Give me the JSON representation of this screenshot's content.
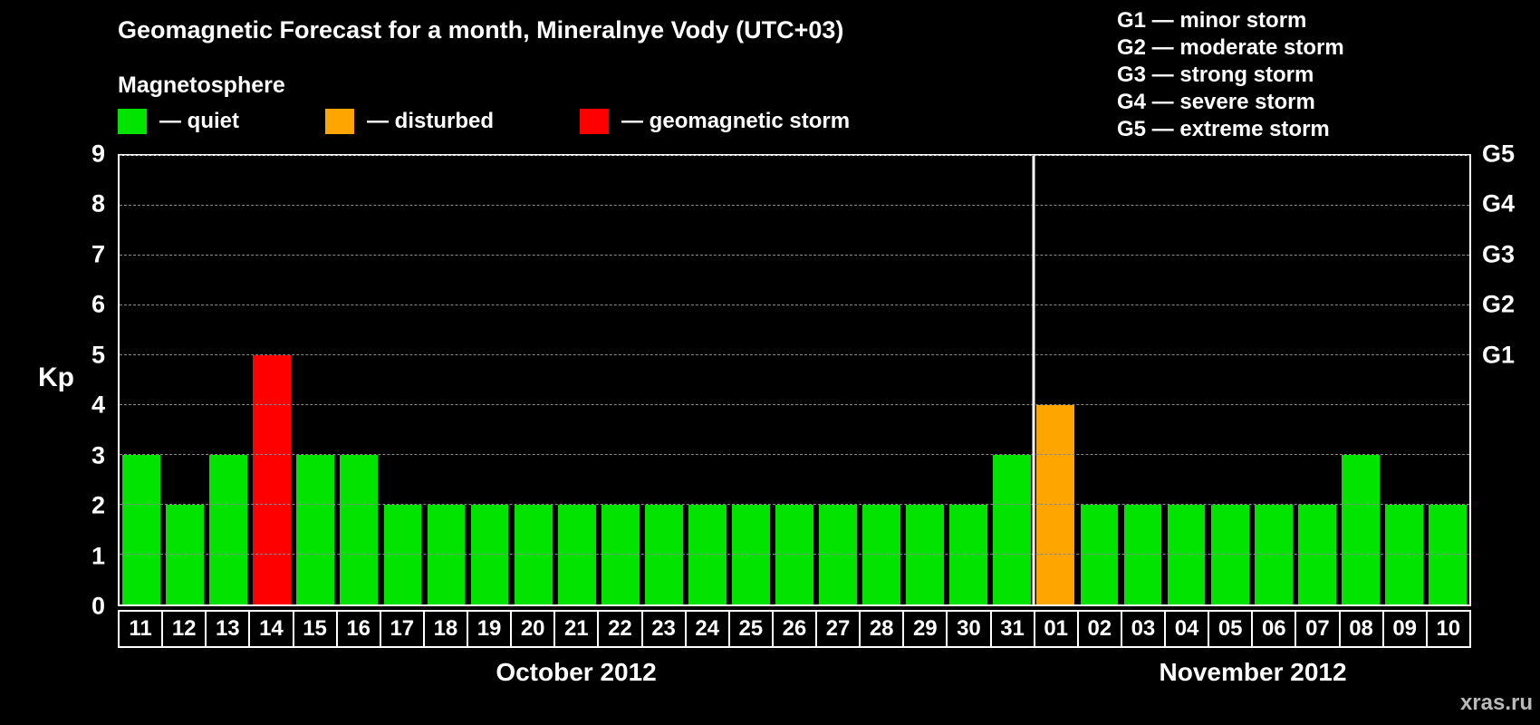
{
  "title": "Geomagnetic Forecast for a month, Mineralnye Vody (UTC+03)",
  "legend": {
    "heading": "Magnetosphere",
    "items": [
      {
        "status": "quiet",
        "color": "#00e400",
        "label": "— quiet"
      },
      {
        "status": "disturbed",
        "color": "#ffa500",
        "label": "— disturbed"
      },
      {
        "status": "storm",
        "color": "#ff0000",
        "label": "— geomagnetic storm"
      }
    ]
  },
  "g_scale_legend": [
    "G1 — minor storm",
    "G2 — moderate storm",
    "G3 — strong storm",
    "G4 — severe storm",
    "G5 — extreme storm"
  ],
  "watermark": "xras.ru",
  "chart_data": {
    "type": "bar",
    "title": "Geomagnetic Forecast for a month, Mineralnye Vody (UTC+03)",
    "xlabel": "",
    "ylabel": "Kp",
    "ylim": [
      0,
      9
    ],
    "yticks": [
      0,
      1,
      2,
      3,
      4,
      5,
      6,
      7,
      8,
      9
    ],
    "grid": "horizontal-dashed",
    "right_axis": [
      {
        "label": "G1",
        "value": 5
      },
      {
        "label": "G2",
        "value": 6
      },
      {
        "label": "G3",
        "value": 7
      },
      {
        "label": "G4",
        "value": 8
      },
      {
        "label": "G5",
        "value": 9
      }
    ],
    "months": [
      {
        "label": "October 2012",
        "days": 21
      },
      {
        "label": "November 2012",
        "days": 10
      }
    ],
    "categories": [
      "11",
      "12",
      "13",
      "14",
      "15",
      "16",
      "17",
      "18",
      "19",
      "20",
      "21",
      "22",
      "23",
      "24",
      "25",
      "26",
      "27",
      "28",
      "29",
      "30",
      "31",
      "01",
      "02",
      "03",
      "04",
      "05",
      "06",
      "07",
      "08",
      "09",
      "10"
    ],
    "values": [
      3,
      2,
      3,
      5,
      3,
      3,
      2,
      2,
      2,
      2,
      2,
      2,
      2,
      2,
      2,
      2,
      2,
      2,
      2,
      2,
      3,
      4,
      2,
      2,
      2,
      2,
      2,
      2,
      3,
      2,
      2
    ],
    "statuses": [
      "quiet",
      "quiet",
      "quiet",
      "storm",
      "quiet",
      "quiet",
      "quiet",
      "quiet",
      "quiet",
      "quiet",
      "quiet",
      "quiet",
      "quiet",
      "quiet",
      "quiet",
      "quiet",
      "quiet",
      "quiet",
      "quiet",
      "quiet",
      "quiet",
      "disturbed",
      "quiet",
      "quiet",
      "quiet",
      "quiet",
      "quiet",
      "quiet",
      "quiet",
      "quiet",
      "quiet"
    ]
  }
}
